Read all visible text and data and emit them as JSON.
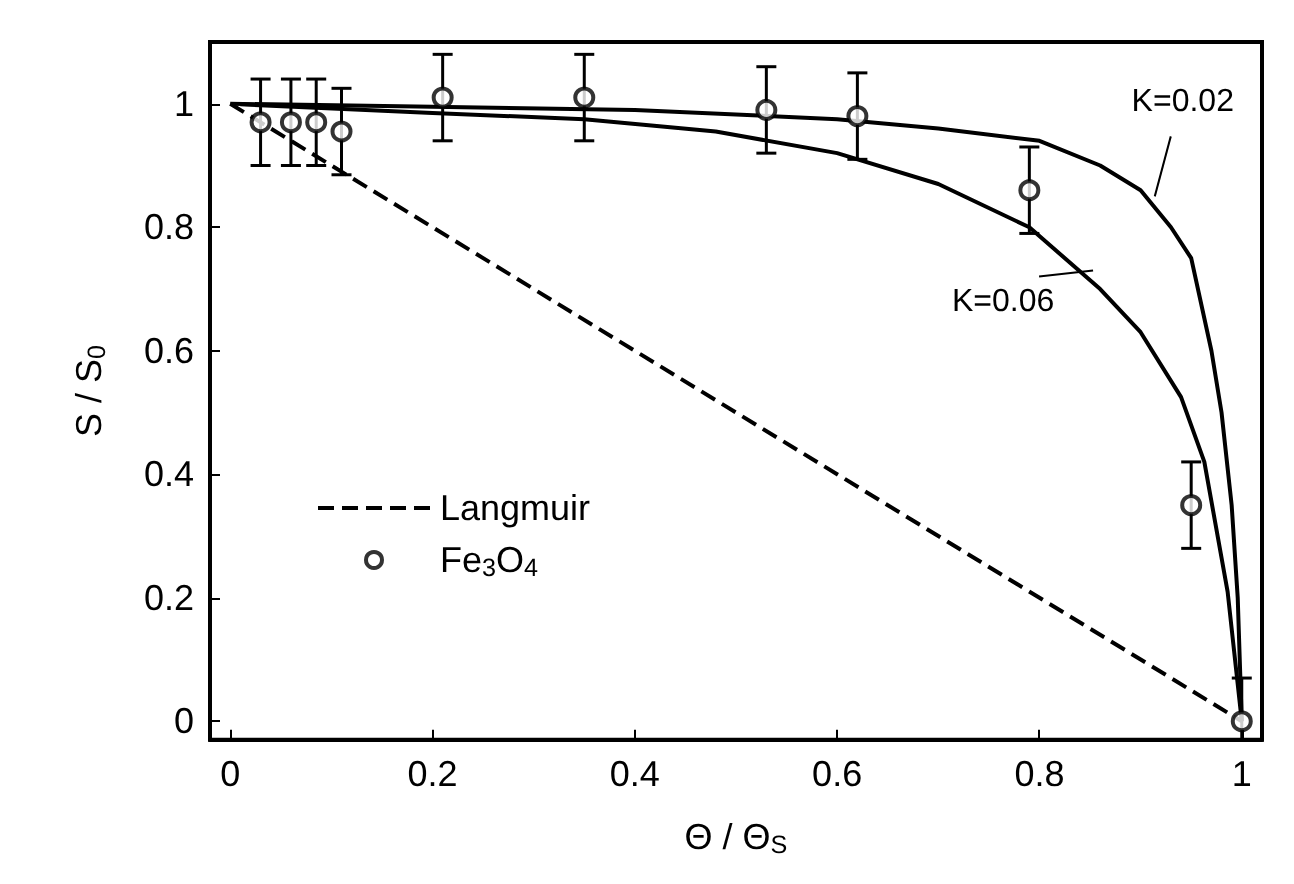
{
  "chart_data": {
    "type": "scatter",
    "xlabel": "Θ / Θ$_{S}$",
    "ylabel": "S / S$_{0}$",
    "xlim": [
      -0.02,
      1.02
    ],
    "ylim": [
      -0.03,
      1.1
    ],
    "xticks": [
      0,
      0.2,
      0.4,
      0.6,
      0.8,
      1
    ],
    "yticks": [
      0,
      0.2,
      0.4,
      0.6,
      0.8,
      1
    ],
    "legend": "left",
    "series": [
      {
        "name": "Langmuir",
        "type": "line",
        "line_style": "dashed",
        "marker": "none",
        "color": "#000000",
        "x": [
          0,
          1
        ],
        "values": [
          1,
          0
        ]
      },
      {
        "type": "line",
        "line_style": "solid",
        "marker": "none",
        "color": "#000000",
        "x": [
          0,
          0.2,
          0.4,
          0.6,
          0.7,
          0.8,
          0.86,
          0.9,
          0.93,
          0.95,
          0.97,
          0.98,
          0.99,
          0.996,
          1
        ],
        "values": [
          1,
          0.995,
          0.99,
          0.975,
          0.96,
          0.94,
          0.9,
          0.86,
          0.8,
          0.75,
          0.6,
          0.5,
          0.35,
          0.2,
          0
        ]
      },
      {
        "type": "line",
        "line_style": "solid",
        "marker": "none",
        "color": "#000000",
        "x": [
          0.01,
          0.2,
          0.35,
          0.48,
          0.6,
          0.7,
          0.79,
          0.86,
          0.9,
          0.94,
          0.963,
          0.986,
          1
        ],
        "values": [
          0.999,
          0.985,
          0.975,
          0.955,
          0.92,
          0.87,
          0.8,
          0.7,
          0.63,
          0.525,
          0.42,
          0.21,
          0
        ]
      },
      {
        "name": "Fe$_{3}$O$_{4}$",
        "marker": "circle",
        "color": "#000000",
        "x": [
          0.03,
          0.06,
          0.085,
          0.11,
          0.21,
          0.35,
          0.53,
          0.62,
          0.79,
          0.95,
          1
        ],
        "values": [
          0.97,
          0.97,
          0.97,
          0.955,
          1.01,
          1.01,
          0.99,
          0.98,
          0.86,
          0.35,
          0
        ],
        "errors": [
          0.07,
          0.07,
          0.07,
          0.07,
          0.07,
          0.07,
          0.07,
          0.07,
          0.07,
          0.07,
          [
            -0.03,
            0.07
          ]
        ]
      }
    ],
    "annotations": [
      {
        "text": "K=0.02",
        "x": 0.914,
        "y": 0.85
      },
      {
        "text": "K=0.06",
        "x": 0.853,
        "y": 0.73
      }
    ]
  }
}
